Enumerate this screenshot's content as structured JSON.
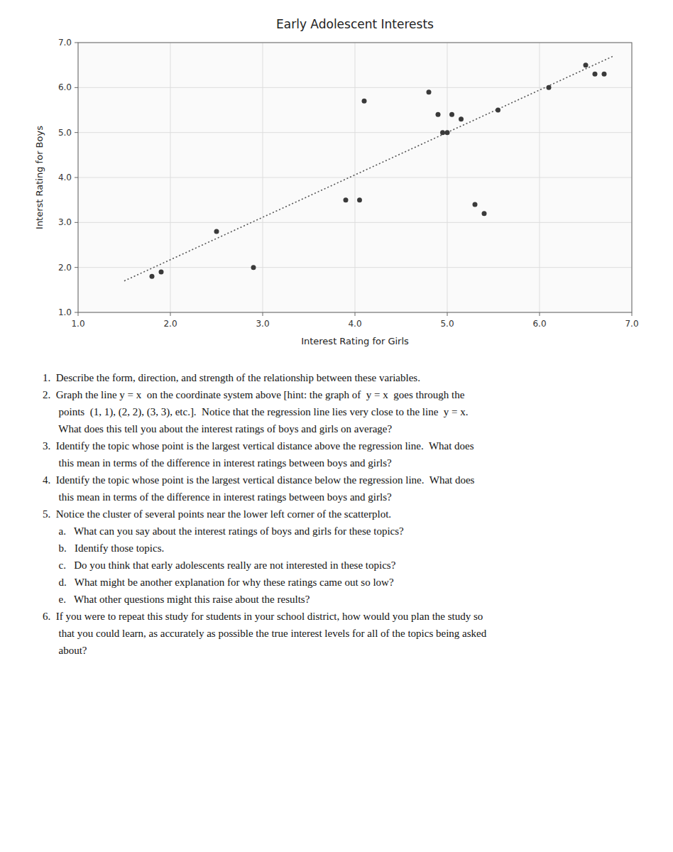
{
  "chart_data": {
    "type": "scatter",
    "title": "Early Adolescent Interests",
    "xlabel": "Interest Rating for Girls",
    "ylabel": "Interst Rating for Boys",
    "xlim": [
      1.0,
      7.0
    ],
    "ylim": [
      1.0,
      7.0
    ],
    "xticks": [
      {
        "value": 1.0,
        "label": "1.0"
      },
      {
        "value": 2.0,
        "label": "2.0"
      },
      {
        "value": 3.0,
        "label": "3.0"
      },
      {
        "value": 4.0,
        "label": "4.0"
      },
      {
        "value": 5.0,
        "label": "5.0"
      },
      {
        "value": 6.0,
        "label": "6.0"
      },
      {
        "value": 7.0,
        "label": "7.0"
      }
    ],
    "yticks": [
      {
        "value": 1.0,
        "label": "1.0"
      },
      {
        "value": 2.0,
        "label": "2.0"
      },
      {
        "value": 3.0,
        "label": "3.0"
      },
      {
        "value": 4.0,
        "label": "4.0"
      },
      {
        "value": 5.0,
        "label": "5.0"
      },
      {
        "value": 6.0,
        "label": "6.0"
      },
      {
        "value": 7.0,
        "label": "7.0"
      }
    ],
    "grid": true,
    "series": [
      {
        "type": "scatter",
        "color": "#3a3a3a",
        "x": [
          1.8,
          1.9,
          2.5,
          2.9,
          3.9,
          4.05,
          4.1,
          4.8,
          4.9,
          4.95,
          5.0,
          5.05,
          5.15,
          5.3,
          5.4,
          5.55,
          6.1,
          6.5,
          6.6,
          6.7
        ],
        "values": [
          1.8,
          1.9,
          2.8,
          2.0,
          3.5,
          3.5,
          5.7,
          5.9,
          5.4,
          5.0,
          5.0,
          5.4,
          5.3,
          3.4,
          3.2,
          5.5,
          6.0,
          6.5,
          6.3,
          6.3
        ]
      },
      {
        "type": "line",
        "color": "#555555",
        "line_style": "dotted",
        "x": [
          1.5,
          6.8
        ],
        "values": [
          1.7,
          6.7
        ]
      }
    ],
    "annotations": [
      "1.  Describe the form, direction, and strength of the relationship between these variables.",
      "2.  Graph the line y = x  on the coordinate system above [hint: the graph of  y = x  goes through the",
      "      points  (1, 1), (2, 2), (3, 3), etc.].  Notice that the regression line lies very close to the line  y = x.",
      "      What does this tell you about the interest ratings of boys and girls on average?",
      "3.  Identify the topic whose point is the largest vertical distance above the regression line.  What does",
      "      this mean in terms of the difference in interest ratings between boys and girls?",
      "4.  Identify the topic whose point is the largest vertical distance below the regression line.  What does",
      "      this mean in terms of the difference in interest ratings between boys and girls?",
      "5.  Notice the cluster of several points near the lower left corner of the scatterplot.",
      "      a.   What can you say about the interest ratings of boys and girls for these topics?",
      "      b.   Identify those topics.",
      "      c.   Do you think that early adolescents really are not interested in these topics?",
      "      d.   What might be another explanation for why these ratings came out so low?",
      "      e.   What other questions might this raise about the results?",
      "6.  If you were to repeat this study for students in your school district, how would you plan the study so",
      "      that you could learn, as accurately as possible the true interest levels for all of the topics being asked",
      "      about?"
    ]
  }
}
